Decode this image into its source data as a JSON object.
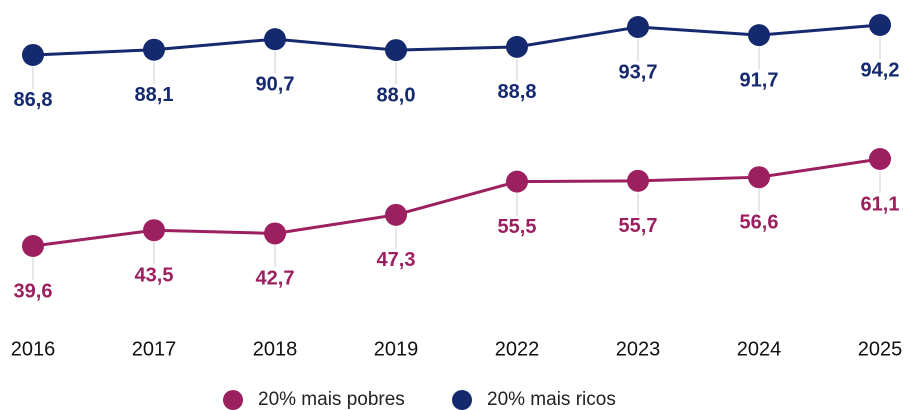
{
  "chart_data": {
    "type": "line",
    "categories": [
      "2016",
      "2017",
      "2018",
      "2019",
      "2022",
      "2023",
      "2024",
      "2025"
    ],
    "series": [
      {
        "name": "20% mais pobres",
        "color": "#9c1f5f",
        "values": [
          39.6,
          43.5,
          42.7,
          47.3,
          55.5,
          55.7,
          56.6,
          61.1
        ],
        "value_labels": [
          "39,6",
          "43,5",
          "42,7",
          "47,3",
          "55,5",
          "55,7",
          "56,6",
          "61,1"
        ]
      },
      {
        "name": "20% mais ricos",
        "color": "#15296e",
        "values": [
          86.8,
          88.1,
          90.7,
          88.0,
          88.8,
          93.7,
          91.7,
          94.2
        ],
        "value_labels": [
          "86,8",
          "88,1",
          "90,7",
          "88,0",
          "88,8",
          "93,7",
          "91,7",
          "94,2"
        ]
      }
    ],
    "legend": "bottom"
  }
}
